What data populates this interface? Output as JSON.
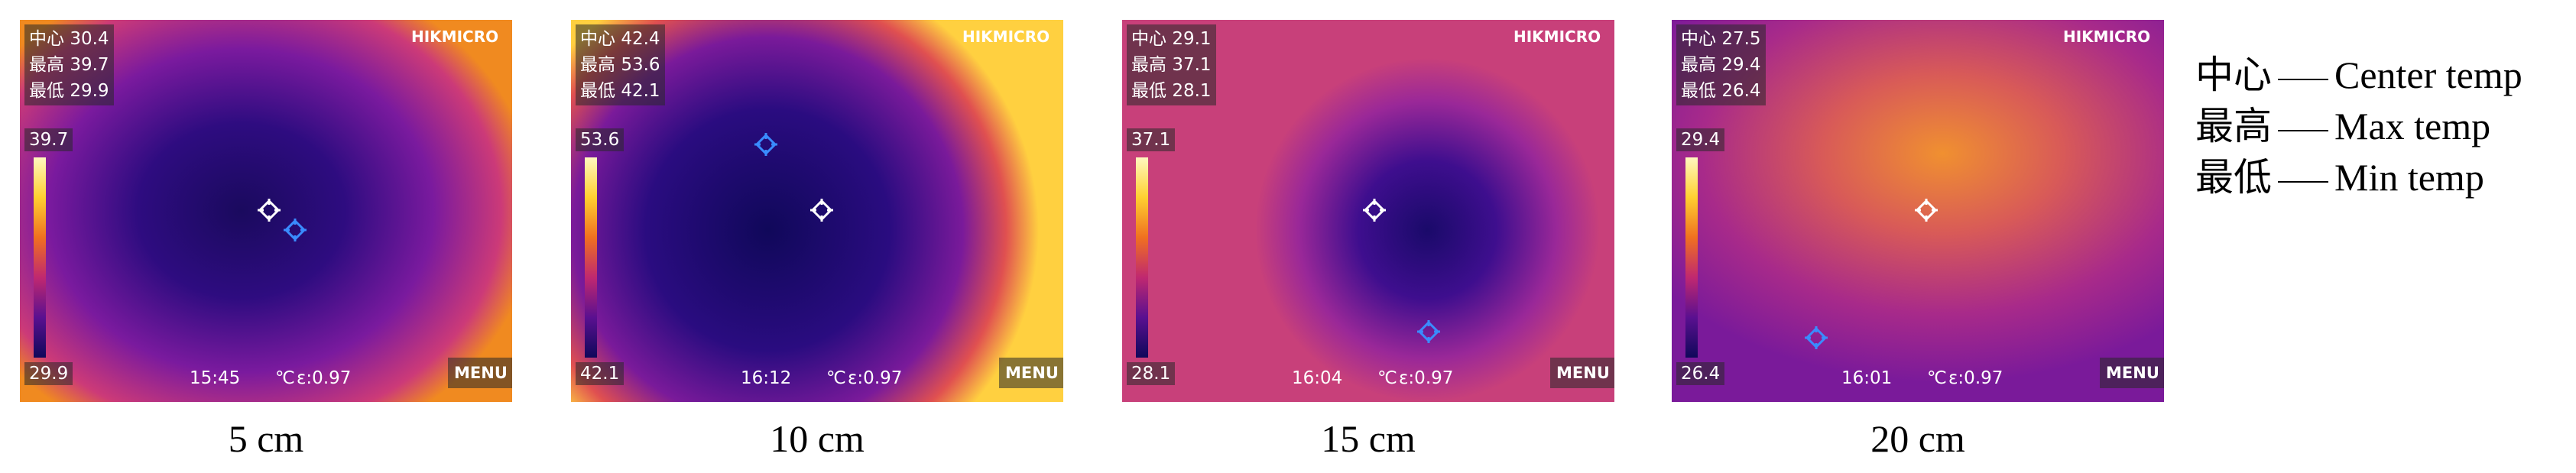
{
  "panels": [
    {
      "caption": "5 cm",
      "center_label": "中心",
      "center": "30.4",
      "max_label": "最高",
      "max": "39.7",
      "min_label": "最低",
      "min": "29.9",
      "scale_max": "39.7",
      "scale_min": "29.9",
      "time": "15:45",
      "unit": "℃",
      "emissivity": "ε:0.97",
      "menu": "MENU",
      "brand": "HIKMICRO"
    },
    {
      "caption": "10 cm",
      "center_label": "中心",
      "center": "42.4",
      "max_label": "最高",
      "max": "53.6",
      "min_label": "最低",
      "min": "42.1",
      "scale_max": "53.6",
      "scale_min": "42.1",
      "time": "16:12",
      "unit": "℃",
      "emissivity": "ε:0.97",
      "menu": "MENU",
      "brand": "HIKMICRO"
    },
    {
      "caption": "15 cm",
      "center_label": "中心",
      "center": "29.1",
      "max_label": "最高",
      "max": "37.1",
      "min_label": "最低",
      "min": "28.1",
      "scale_max": "37.1",
      "scale_min": "28.1",
      "time": "16:04",
      "unit": "℃",
      "emissivity": "ε:0.97",
      "menu": "MENU",
      "brand": "HIKMICRO"
    },
    {
      "caption": "20 cm",
      "center_label": "中心",
      "center": "27.5",
      "max_label": "最高",
      "max": "29.4",
      "min_label": "最低",
      "min": "26.4",
      "scale_max": "29.4",
      "scale_min": "26.4",
      "time": "16:01",
      "unit": "℃",
      "emissivity": "ε:0.97",
      "menu": "MENU",
      "brand": "HIKMICRO"
    }
  ],
  "legend": [
    {
      "term": "中心",
      "meaning": "Center temp"
    },
    {
      "term": "最高",
      "meaning": "Max temp"
    },
    {
      "term": "最低",
      "meaning": "Min temp"
    }
  ]
}
